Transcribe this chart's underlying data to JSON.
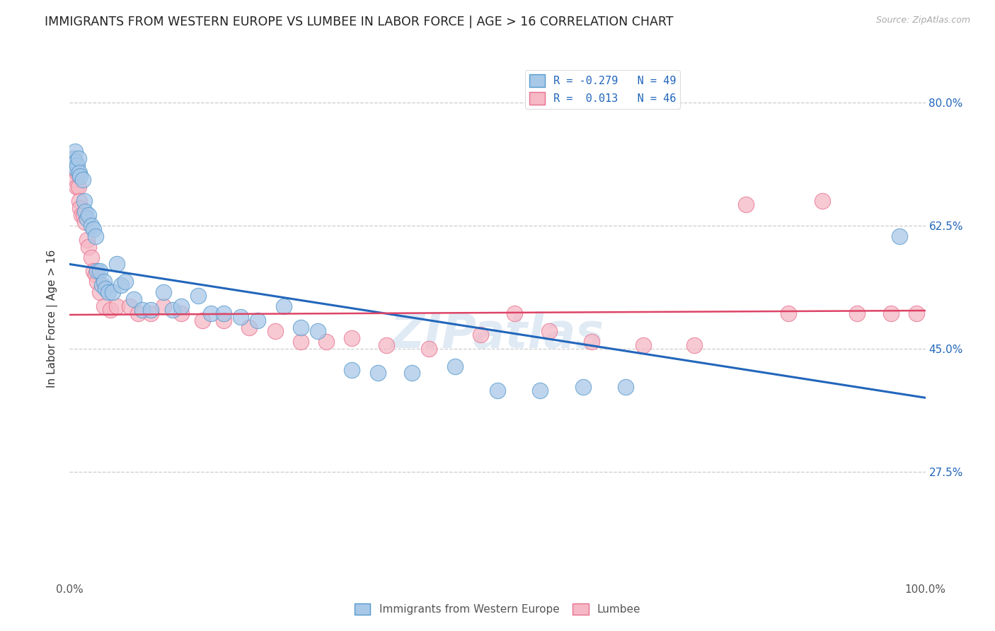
{
  "title": "IMMIGRANTS FROM WESTERN EUROPE VS LUMBEE IN LABOR FORCE | AGE > 16 CORRELATION CHART",
  "source_text": "Source: ZipAtlas.com",
  "ylabel": "In Labor Force | Age > 16",
  "xlim": [
    0.0,
    1.0
  ],
  "ylim": [
    0.12,
    0.865
  ],
  "ytick_positions": [
    0.275,
    0.45,
    0.625,
    0.8
  ],
  "ytick_labels_right": [
    "27.5%",
    "45.0%",
    "62.5%",
    "80.0%"
  ],
  "blue_scatter_color": "#a8c8e8",
  "blue_edge_color": "#5599cc",
  "pink_scatter_color": "#f5b8c4",
  "pink_edge_color": "#e87090",
  "blue_line_color": "#2266bb",
  "pink_line_color": "#dd4466",
  "legend_blue_label_r": "R = -0.279",
  "legend_blue_label_n": "N = 49",
  "legend_pink_label_r": "R =  0.013",
  "legend_pink_label_n": "N = 46",
  "watermark": "ZIPatlas",
  "blue_line_x0": 0.0,
  "blue_line_y0": 0.57,
  "blue_line_x1": 1.0,
  "blue_line_y1": 0.38,
  "pink_line_x0": 0.0,
  "pink_line_y0": 0.498,
  "pink_line_x1": 1.0,
  "pink_line_y1": 0.504,
  "blue_x": [
    0.005,
    0.006,
    0.007,
    0.008,
    0.009,
    0.01,
    0.011,
    0.012,
    0.015,
    0.017,
    0.018,
    0.02,
    0.022,
    0.025,
    0.028,
    0.03,
    0.032,
    0.035,
    0.038,
    0.04,
    0.042,
    0.045,
    0.05,
    0.055,
    0.06,
    0.065,
    0.075,
    0.085,
    0.095,
    0.11,
    0.12,
    0.13,
    0.15,
    0.165,
    0.18,
    0.2,
    0.22,
    0.25,
    0.27,
    0.29,
    0.33,
    0.36,
    0.4,
    0.45,
    0.5,
    0.55,
    0.6,
    0.65,
    0.97
  ],
  "blue_y": [
    0.72,
    0.73,
    0.715,
    0.705,
    0.71,
    0.72,
    0.7,
    0.695,
    0.69,
    0.66,
    0.645,
    0.635,
    0.64,
    0.625,
    0.62,
    0.61,
    0.56,
    0.56,
    0.54,
    0.545,
    0.535,
    0.53,
    0.53,
    0.57,
    0.54,
    0.545,
    0.52,
    0.505,
    0.505,
    0.53,
    0.505,
    0.51,
    0.525,
    0.5,
    0.5,
    0.495,
    0.49,
    0.51,
    0.48,
    0.475,
    0.42,
    0.415,
    0.415,
    0.425,
    0.39,
    0.39,
    0.395,
    0.395,
    0.61
  ],
  "pink_x": [
    0.005,
    0.007,
    0.008,
    0.009,
    0.01,
    0.011,
    0.012,
    0.014,
    0.016,
    0.018,
    0.02,
    0.022,
    0.025,
    0.028,
    0.03,
    0.032,
    0.035,
    0.04,
    0.048,
    0.055,
    0.07,
    0.08,
    0.095,
    0.11,
    0.13,
    0.155,
    0.18,
    0.21,
    0.24,
    0.27,
    0.3,
    0.33,
    0.37,
    0.42,
    0.48,
    0.52,
    0.56,
    0.61,
    0.67,
    0.73,
    0.79,
    0.84,
    0.88,
    0.92,
    0.96,
    0.99
  ],
  "pink_y": [
    0.72,
    0.69,
    0.68,
    0.7,
    0.68,
    0.66,
    0.65,
    0.64,
    0.64,
    0.63,
    0.605,
    0.595,
    0.58,
    0.56,
    0.555,
    0.545,
    0.53,
    0.51,
    0.505,
    0.51,
    0.51,
    0.5,
    0.5,
    0.51,
    0.5,
    0.49,
    0.49,
    0.48,
    0.475,
    0.46,
    0.46,
    0.465,
    0.455,
    0.45,
    0.47,
    0.5,
    0.475,
    0.46,
    0.455,
    0.455,
    0.655,
    0.5,
    0.66,
    0.5,
    0.5,
    0.5
  ]
}
